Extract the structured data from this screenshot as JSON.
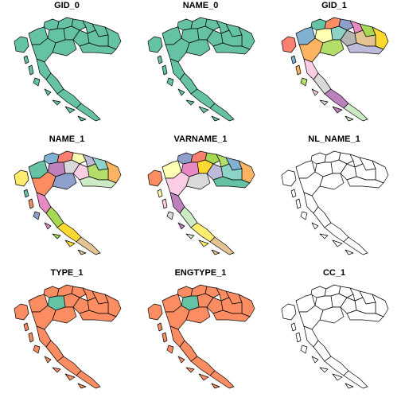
{
  "figure": {
    "type": "choropleth small multiples",
    "layout": "3x3 grid",
    "country": "Croatia",
    "panels": [
      {
        "title": "GID_0",
        "fill": "categorical-single",
        "colors": [
          "#66C2A5"
        ]
      },
      {
        "title": "NAME_0",
        "fill": "categorical-single",
        "colors": [
          "#66C2A5"
        ]
      },
      {
        "title": "GID_1",
        "fill": "categorical",
        "colors": [
          "#66C2A5",
          "#FC8D62",
          "#8DA0CB",
          "#E78AC3",
          "#A6D854",
          "#FFD92F",
          "#E5C494",
          "#B3B3B3",
          "#8DD3C7",
          "#FFFFB3",
          "#BEBADA",
          "#FB8072",
          "#80B1D3",
          "#FDB462",
          "#B3DE69",
          "#FCCDE5",
          "#D9D9D9",
          "#BC80BD",
          "#CCEBC5",
          "#FFED6F",
          "#A6CEE3"
        ]
      },
      {
        "title": "NAME_1",
        "fill": "categorical",
        "colors": [
          "#80B1D3",
          "#FB8072",
          "#FFFFB3",
          "#BEBADA",
          "#8DD3C7",
          "#FDB462",
          "#B3DE69",
          "#FCCDE5",
          "#D9D9D9",
          "#BC80BD",
          "#CCEBC5",
          "#FFED6F",
          "#66C2A5",
          "#FC8D62",
          "#8DA0CB",
          "#E78AC3",
          "#A6D854",
          "#FFD92F",
          "#E5C494",
          "#B3B3B3",
          "#A6CEE3"
        ]
      },
      {
        "title": "VARNAME_1",
        "fill": "categorical",
        "colors": [
          "#8DA0CB",
          "#FB8072",
          "#A6D854",
          "#B3DE69",
          "#80B1D3",
          "#FDB462",
          "#8DD3C7",
          "#BEBADA",
          "#FFD92F",
          "#E78AC3",
          "#66C2A5",
          "#FC8D62",
          "#FFFFB3",
          "#FCCDE5",
          "#D9D9D9",
          "#BC80BD",
          "#CCEBC5",
          "#FFED6F",
          "#E5C494",
          "#B3B3B3",
          "#A6CEE3"
        ]
      },
      {
        "title": "NL_NAME_1",
        "fill": "none",
        "colors": [
          "#FFFFFF"
        ]
      },
      {
        "title": "TYPE_1",
        "fill": "categorical-two",
        "colors": [
          "#FC8D62",
          "#66C2A5"
        ]
      },
      {
        "title": "ENGTYPE_1",
        "fill": "categorical-two",
        "colors": [
          "#FC8D62",
          "#66C2A5"
        ]
      },
      {
        "title": "CC_1",
        "fill": "none",
        "colors": [
          "#FFFFFF"
        ]
      }
    ]
  }
}
